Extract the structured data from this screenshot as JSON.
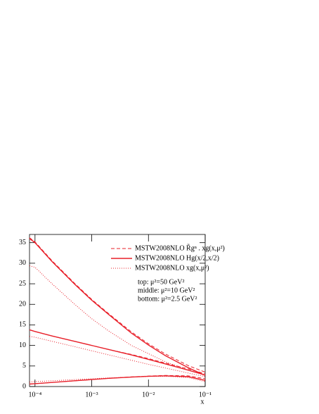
{
  "chart_data": {
    "type": "line",
    "x_label": "x",
    "log_x": true,
    "xlim": [
      8e-05,
      0.1
    ],
    "xticks": [
      {
        "value": 0.0001,
        "label": "10⁻⁴"
      },
      {
        "value": 0.001,
        "label": "10⁻³"
      },
      {
        "value": 0.01,
        "label": "10⁻²"
      },
      {
        "value": 0.1,
        "label": "10⁻¹"
      }
    ],
    "ylim": [
      0,
      37
    ],
    "yticks": [
      0,
      5,
      10,
      15,
      20,
      25,
      30,
      35
    ],
    "x": [
      8e-05,
      0.0001,
      0.0002,
      0.0005,
      0.001,
      0.002,
      0.005,
      0.01,
      0.02,
      0.05,
      0.1
    ],
    "series": [
      {
        "name": "MSTW2008NLO  R̃gⁿ . xg(x,μ²)",
        "color": "#e8202a",
        "dash": "dashed",
        "curves": [
          [
            36.2,
            35.2,
            30.6,
            25.1,
            21.2,
            17.7,
            13.3,
            10.4,
            7.9,
            5.1,
            3.5
          ],
          [
            13.8,
            13.4,
            12.3,
            11.0,
            10.0,
            9.0,
            7.8,
            6.8,
            5.7,
            4.3,
            3.1
          ],
          [
            0.6,
            0.7,
            1.0,
            1.4,
            1.7,
            2.0,
            2.35,
            2.55,
            2.7,
            2.6,
            1.9
          ]
        ]
      },
      {
        "name": "MSTW2008NLO  Hg(x/2,x/2)",
        "color": "#e8202a",
        "dash": "solid",
        "curves": [
          [
            36.0,
            35.0,
            30.4,
            24.9,
            21.0,
            17.5,
            13.0,
            10.1,
            7.5,
            4.6,
            2.7
          ],
          [
            13.8,
            13.4,
            12.3,
            11.0,
            10.0,
            9.0,
            7.7,
            6.6,
            5.5,
            4.0,
            2.8
          ],
          [
            0.6,
            0.7,
            1.0,
            1.4,
            1.7,
            2.0,
            2.3,
            2.5,
            2.6,
            2.4,
            1.5
          ]
        ]
      },
      {
        "name": "MSTW2008NLO  xg(x,μ²)",
        "color": "#e8202a",
        "dash": "dotted",
        "curves": [
          [
            29.4,
            29.0,
            25.0,
            20.0,
            16.5,
            13.5,
            10.0,
            8.0,
            6.0,
            4.0,
            2.8
          ],
          [
            12.2,
            12.0,
            11.0,
            9.7,
            8.7,
            7.7,
            6.4,
            5.4,
            4.5,
            3.3,
            2.4
          ],
          [
            1.1,
            1.2,
            1.4,
            1.7,
            1.9,
            2.1,
            2.3,
            2.45,
            2.5,
            2.2,
            1.2
          ]
        ]
      }
    ],
    "annotations": [
      "top: μ²=50 GeV²",
      "middle: μ²=10 GeV²",
      "bottom: μ²=2.5 GeV²"
    ]
  }
}
